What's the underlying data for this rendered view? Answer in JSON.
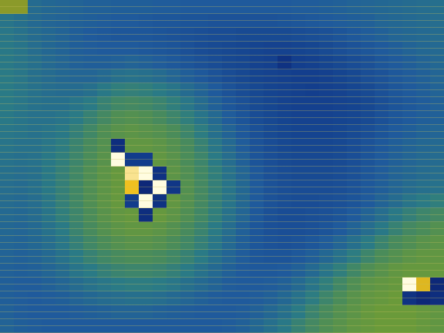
{
  "chart_data": {
    "type": "heatmap",
    "tick_labels": false,
    "color_range": [
      0,
      100
    ],
    "cells": [
      [
        70,
        70,
        38,
        36,
        35,
        34,
        33,
        33,
        32,
        32,
        32,
        31,
        31,
        30,
        30,
        30,
        30,
        30,
        30,
        30,
        30,
        31,
        31,
        32,
        33,
        34,
        35,
        36,
        37,
        38,
        39,
        40
      ],
      [
        42,
        40,
        37,
        35,
        34,
        33,
        32,
        31,
        30,
        30,
        29,
        28,
        28,
        27,
        27,
        26,
        26,
        26,
        26,
        26,
        27,
        28,
        29,
        30,
        31,
        32,
        33,
        35,
        36,
        37,
        38,
        39
      ],
      [
        43,
        41,
        38,
        36,
        34,
        32,
        30,
        29,
        28,
        28,
        28,
        27,
        26,
        25,
        24,
        23,
        23,
        22,
        22,
        22,
        22,
        23,
        24,
        25,
        27,
        29,
        31,
        33,
        35,
        36,
        37,
        38
      ],
      [
        44,
        42,
        39,
        36,
        34,
        32,
        31,
        30,
        30,
        30,
        29,
        28,
        27,
        25,
        23,
        22,
        21,
        20,
        19,
        18,
        18,
        19,
        20,
        22,
        24,
        26,
        28,
        30,
        32,
        34,
        36,
        37
      ],
      [
        44,
        42,
        40,
        37,
        35,
        33,
        32,
        32,
        33,
        34,
        33,
        31,
        29,
        27,
        25,
        23,
        21,
        20,
        18,
        17,
        10,
        16,
        17,
        19,
        21,
        23,
        25,
        28,
        30,
        32,
        34,
        36
      ],
      [
        45,
        43,
        40,
        38,
        36,
        35,
        35,
        37,
        40,
        41,
        40,
        38,
        35,
        32,
        29,
        26,
        23,
        21,
        19,
        18,
        17,
        16,
        16,
        17,
        19,
        21,
        24,
        26,
        29,
        31,
        33,
        35
      ],
      [
        45,
        43,
        41,
        39,
        38,
        38,
        40,
        44,
        47,
        48,
        47,
        45,
        42,
        38,
        34,
        30,
        26,
        23,
        21,
        19,
        18,
        17,
        16,
        17,
        18,
        20,
        22,
        25,
        28,
        30,
        32,
        34
      ],
      [
        45,
        43,
        41,
        40,
        40,
        42,
        45,
        49,
        52,
        53,
        52,
        50,
        47,
        43,
        38,
        33,
        28,
        25,
        22,
        20,
        18,
        17,
        17,
        17,
        18,
        19,
        21,
        24,
        27,
        29,
        31,
        33
      ],
      [
        44,
        42,
        41,
        41,
        42,
        45,
        49,
        53,
        56,
        57,
        56,
        54,
        51,
        47,
        42,
        37,
        31,
        27,
        23,
        21,
        19,
        18,
        18,
        18,
        19,
        20,
        22,
        25,
        28,
        30,
        32,
        33
      ],
      [
        43,
        42,
        41,
        42,
        44,
        48,
        52,
        56,
        58,
        59,
        58,
        57,
        55,
        51,
        46,
        40,
        34,
        29,
        25,
        22,
        20,
        19,
        19,
        19,
        20,
        22,
        24,
        27,
        30,
        32,
        34,
        35
      ],
      [
        42,
        41,
        41,
        43,
        46,
        50,
        54,
        57,
        8,
        60,
        60,
        59,
        57,
        54,
        49,
        43,
        37,
        31,
        26,
        23,
        21,
        20,
        20,
        20,
        21,
        23,
        26,
        29,
        32,
        34,
        36,
        37
      ],
      [
        41,
        40,
        41,
        44,
        47,
        51,
        55,
        58,
        100,
        15,
        15,
        60,
        58,
        55,
        51,
        45,
        39,
        33,
        27,
        24,
        22,
        21,
        21,
        21,
        22,
        24,
        27,
        30,
        33,
        35,
        37,
        38
      ],
      [
        40,
        39,
        40,
        44,
        48,
        52,
        56,
        59,
        61,
        95,
        100,
        10,
        59,
        56,
        52,
        47,
        41,
        35,
        29,
        25,
        23,
        22,
        22,
        22,
        23,
        25,
        28,
        31,
        34,
        36,
        38,
        39
      ],
      [
        39,
        38,
        40,
        44,
        48,
        52,
        56,
        59,
        61,
        88,
        5,
        100,
        12,
        57,
        53,
        48,
        42,
        36,
        30,
        26,
        24,
        23,
        23,
        23,
        24,
        26,
        29,
        32,
        35,
        38,
        40,
        41
      ],
      [
        38,
        37,
        39,
        43,
        48,
        52,
        56,
        59,
        61,
        15,
        100,
        10,
        60,
        57,
        53,
        48,
        42,
        36,
        30,
        26,
        24,
        23,
        23,
        24,
        25,
        27,
        30,
        34,
        38,
        42,
        45,
        47
      ],
      [
        37,
        36,
        38,
        42,
        47,
        51,
        55,
        58,
        60,
        61,
        8,
        61,
        59,
        56,
        52,
        47,
        41,
        35,
        29,
        25,
        23,
        23,
        24,
        25,
        27,
        30,
        34,
        39,
        44,
        48,
        51,
        53
      ],
      [
        36,
        35,
        37,
        41,
        45,
        50,
        54,
        57,
        59,
        60,
        60,
        59,
        57,
        54,
        50,
        45,
        39,
        33,
        28,
        25,
        24,
        24,
        25,
        27,
        30,
        34,
        39,
        44,
        49,
        53,
        55,
        57
      ],
      [
        35,
        34,
        36,
        39,
        43,
        48,
        52,
        55,
        57,
        58,
        58,
        57,
        55,
        52,
        48,
        43,
        37,
        32,
        28,
        26,
        25,
        26,
        28,
        31,
        35,
        40,
        45,
        50,
        54,
        56,
        58,
        59
      ],
      [
        34,
        33,
        34,
        37,
        41,
        45,
        49,
        52,
        54,
        55,
        55,
        54,
        52,
        49,
        45,
        40,
        35,
        31,
        28,
        27,
        27,
        29,
        32,
        36,
        41,
        46,
        51,
        55,
        57,
        59,
        60,
        60
      ],
      [
        33,
        32,
        33,
        35,
        38,
        42,
        45,
        48,
        50,
        51,
        51,
        50,
        48,
        45,
        41,
        37,
        33,
        30,
        29,
        29,
        30,
        33,
        37,
        42,
        47,
        52,
        56,
        58,
        60,
        61,
        61,
        61
      ],
      [
        32,
        31,
        31,
        33,
        35,
        38,
        41,
        43,
        45,
        46,
        46,
        45,
        43,
        40,
        37,
        34,
        31,
        30,
        30,
        31,
        33,
        37,
        42,
        47,
        52,
        56,
        59,
        60,
        61,
        100,
        85,
        5
      ],
      [
        32,
        31,
        30,
        31,
        32,
        34,
        36,
        38,
        39,
        40,
        40,
        39,
        37,
        35,
        33,
        31,
        30,
        30,
        31,
        33,
        36,
        41,
        46,
        51,
        55,
        58,
        60,
        61,
        62,
        10,
        5,
        8
      ],
      [
        33,
        31,
        30,
        30,
        30,
        31,
        32,
        33,
        34,
        34,
        34,
        33,
        32,
        31,
        30,
        30,
        30,
        31,
        33,
        36,
        40,
        45,
        50,
        54,
        57,
        59,
        61,
        62,
        62,
        62,
        61,
        60
      ],
      [
        34,
        32,
        31,
        30,
        30,
        30,
        30,
        30,
        30,
        30,
        30,
        30,
        30,
        30,
        30,
        30,
        31,
        33,
        36,
        40,
        44,
        49,
        53,
        56,
        58,
        60,
        61,
        62,
        62,
        62,
        61,
        60
      ]
    ]
  }
}
